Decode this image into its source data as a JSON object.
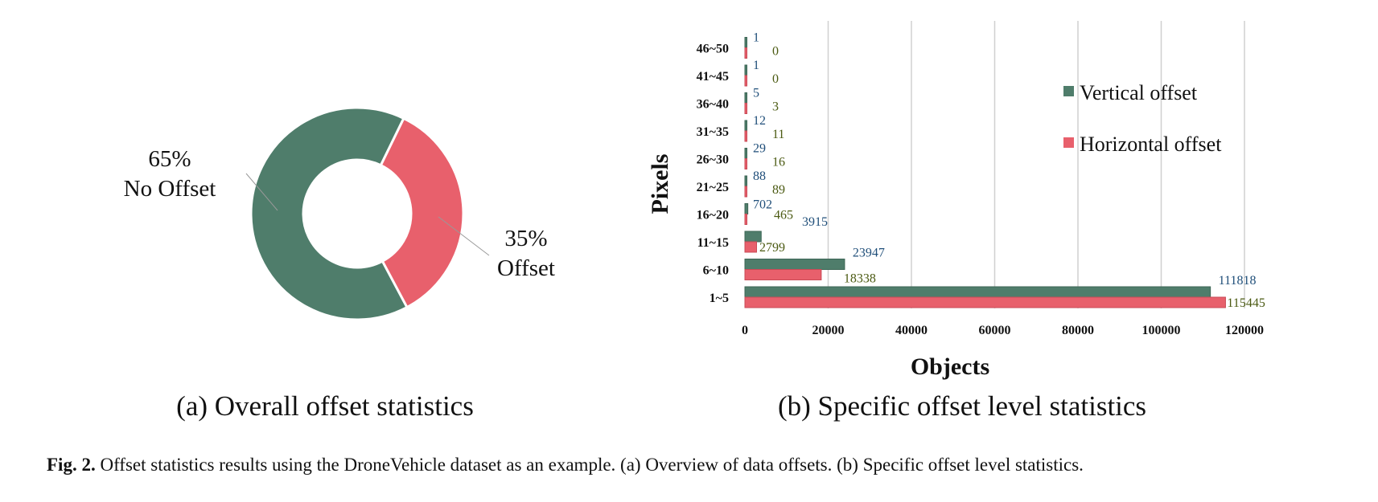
{
  "colors": {
    "vertical": "#4f7d6b",
    "vertical_dark": "#3d6656",
    "horizontal": "#e8606c",
    "horizontal_dark": "#c94a56",
    "vertical_label": "#1f4e79",
    "horizontal_label": "#4b5a12",
    "grid": "#d0d0d0"
  },
  "chart_data": [
    {
      "type": "pie",
      "variant": "donut",
      "categories": [
        "No Offset",
        "Offset"
      ],
      "values": [
        65,
        35
      ],
      "labels": [
        {
          "pct": "65%",
          "name": "No Offset"
        },
        {
          "pct": "35%",
          "name": "Offset"
        }
      ],
      "subtitle": "(a) Overall offset statistics"
    },
    {
      "type": "bar",
      "orientation": "horizontal",
      "categories": [
        "1~5",
        "6~10",
        "11~15",
        "16~20",
        "21~25",
        "26~30",
        "31~35",
        "36~40",
        "41~45",
        "46~50"
      ],
      "series": [
        {
          "name": "Vertical offset",
          "values": [
            111818,
            23947,
            3915,
            702,
            88,
            29,
            12,
            5,
            1,
            1
          ]
        },
        {
          "name": "Horizontal offset",
          "values": [
            115445,
            18338,
            2799,
            465,
            89,
            16,
            11,
            3,
            0,
            0
          ]
        }
      ],
      "xlabel": "Objects",
      "ylabel": "Pixels",
      "xlim": [
        0,
        120000
      ],
      "xticks": [
        0,
        20000,
        40000,
        60000,
        80000,
        100000,
        120000
      ],
      "grid": true,
      "legend_position": "top-right",
      "subtitle": "(b) Specific offset level statistics"
    }
  ],
  "caption": {
    "label": "Fig. 2.",
    "text": "Offset statistics results using the DroneVehicle dataset as an example. (a) Overview of data offsets. (b) Specific offset level statistics."
  }
}
